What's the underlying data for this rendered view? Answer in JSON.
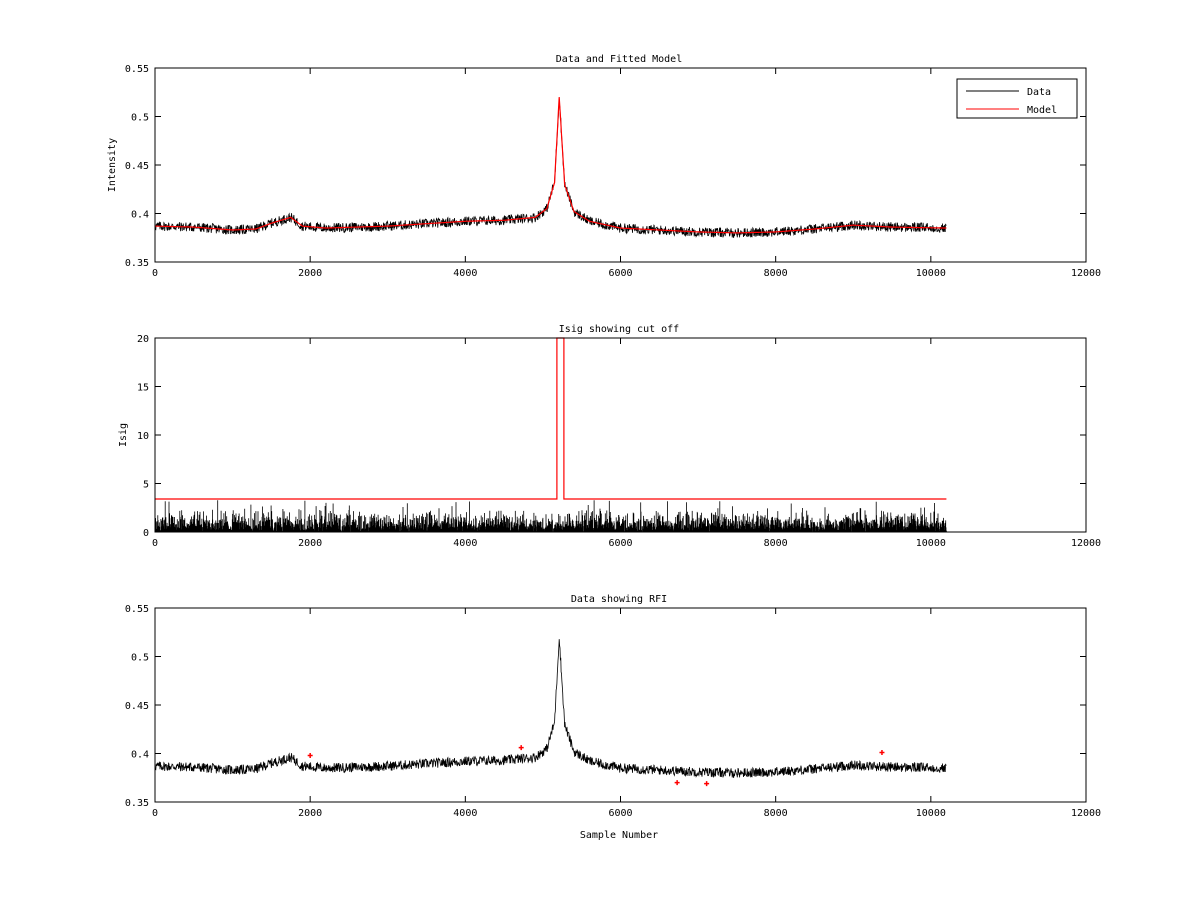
{
  "colors": {
    "data": "#000000",
    "model": "#ff0000",
    "rfi": "#ff0000",
    "axes": "#000000",
    "background": "#ffffff"
  },
  "chart_data": [
    {
      "type": "line",
      "title": "Data and Fitted Model",
      "xlabel": "",
      "ylabel": "Intensity",
      "xlim": [
        0,
        12000
      ],
      "ylim": [
        0.35,
        0.55
      ],
      "xticks": [
        "0",
        "2000",
        "4000",
        "6000",
        "8000",
        "10000",
        "12000"
      ],
      "yticks": [
        "0.35",
        "0.4",
        "0.45",
        "0.5",
        "0.55"
      ],
      "grid": false,
      "legend": {
        "position": "top-right",
        "entries": [
          "Data",
          "Model"
        ]
      },
      "series": [
        {
          "name": "Data",
          "color": "#000000",
          "x_range": [
            0,
            10200
          ],
          "noise_amplitude": 0.005,
          "baseline_x": [
            0,
            500,
            1000,
            1300,
            1500,
            1750,
            1900,
            2200,
            3000,
            3600,
            4000,
            4500,
            4900,
            5050,
            5150,
            5210,
            5280,
            5400,
            5600,
            6000,
            6500,
            7000,
            7500,
            8000,
            8500,
            9000,
            9500,
            10200
          ],
          "baseline_y": [
            0.387,
            0.386,
            0.383,
            0.384,
            0.39,
            0.396,
            0.387,
            0.385,
            0.387,
            0.39,
            0.392,
            0.393,
            0.396,
            0.405,
            0.432,
            0.52,
            0.43,
            0.402,
            0.392,
            0.385,
            0.383,
            0.381,
            0.38,
            0.381,
            0.384,
            0.388,
            0.386,
            0.385
          ]
        },
        {
          "name": "Model",
          "color": "#ff0000",
          "x": [
            0,
            500,
            1000,
            1300,
            1500,
            1750,
            1900,
            2200,
            3000,
            3600,
            4000,
            4500,
            4900,
            5050,
            5150,
            5210,
            5280,
            5400,
            5600,
            6000,
            6500,
            7000,
            7500,
            8000,
            8500,
            9000,
            9500,
            10200
          ],
          "y": [
            0.387,
            0.386,
            0.383,
            0.384,
            0.39,
            0.396,
            0.387,
            0.385,
            0.387,
            0.39,
            0.392,
            0.393,
            0.396,
            0.405,
            0.432,
            0.52,
            0.43,
            0.402,
            0.392,
            0.385,
            0.383,
            0.381,
            0.38,
            0.381,
            0.384,
            0.388,
            0.386,
            0.385
          ]
        }
      ]
    },
    {
      "type": "line",
      "title": "Isig showing cut off",
      "xlabel": "",
      "ylabel": "Isig",
      "xlim": [
        0,
        12000
      ],
      "ylim": [
        0,
        20
      ],
      "xticks": [
        "0",
        "2000",
        "4000",
        "6000",
        "8000",
        "10000",
        "12000"
      ],
      "yticks": [
        "0",
        "5",
        "10",
        "15",
        "20"
      ],
      "grid": false,
      "series": [
        {
          "color": "#000000",
          "x_range": [
            0,
            10200
          ],
          "amplitude_typical": 1.5,
          "amplitude_max": 3.3
        },
        {
          "color": "#ff0000",
          "x": [
            0,
            5180,
            5180,
            5270,
            5270,
            10200
          ],
          "y": [
            3.4,
            3.4,
            20,
            20,
            3.4,
            3.4
          ]
        }
      ]
    },
    {
      "type": "line",
      "title": "Data showing RFI",
      "xlabel": "Sample Number",
      "ylabel": "",
      "xlim": [
        0,
        12000
      ],
      "ylim": [
        0.35,
        0.55
      ],
      "xticks": [
        "0",
        "2000",
        "4000",
        "6000",
        "8000",
        "10000",
        "12000"
      ],
      "yticks": [
        "0.35",
        "0.4",
        "0.45",
        "0.5",
        "0.55"
      ],
      "grid": false,
      "series": [
        {
          "color": "#000000",
          "x_range": [
            0,
            10200
          ],
          "same_as_panel": 0
        },
        {
          "type": "scatter",
          "color": "#ff0000",
          "marker": "+",
          "x": [
            2000,
            4720,
            6730,
            7110,
            9370
          ],
          "y": [
            0.398,
            0.406,
            0.37,
            0.369,
            0.401
          ]
        }
      ]
    }
  ]
}
